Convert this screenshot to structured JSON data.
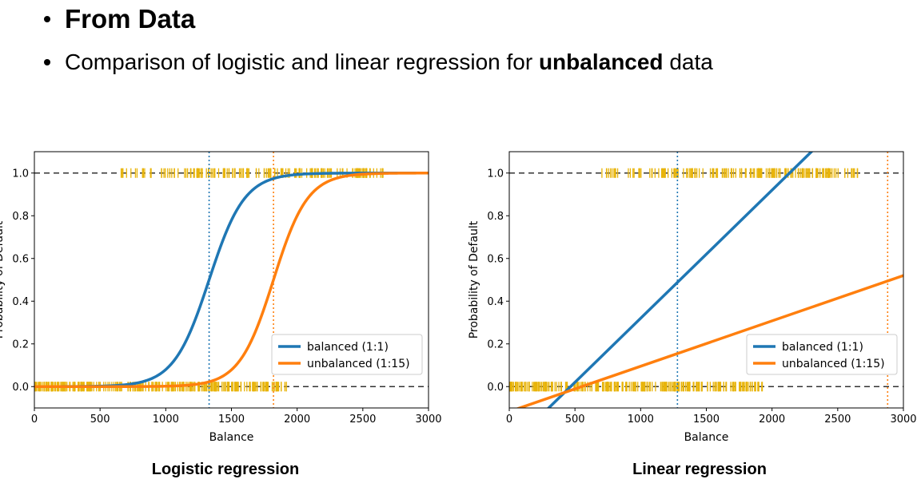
{
  "slide": {
    "bullet1": "From Data",
    "bullet2_pre": "Comparison of logistic and linear regression for ",
    "bullet2_bold": "unbalanced",
    "bullet2_post": " data"
  },
  "colors": {
    "blue": "#1f77b4",
    "orange": "#ff7f0e",
    "rug": "#e8b40a",
    "grid_dash": "#333333"
  },
  "chart_data": [
    {
      "type": "line",
      "caption": "Logistic regression",
      "xlabel": "Balance",
      "ylabel": "Probability of Default",
      "xlim": [
        0,
        3000
      ],
      "ylim": [
        -0.1,
        1.1
      ],
      "xticks": [
        "0",
        "500",
        "1000",
        "1500",
        "2000",
        "2500",
        "3000"
      ],
      "yticks": [
        "0.0",
        "0.2",
        "0.4",
        "0.6",
        "0.8",
        "1.0"
      ],
      "hlines": [
        0.0,
        1.0
      ],
      "legend_position": "lower-right",
      "series": [
        {
          "name": "balanced (1:1)",
          "color": "#1f77b4",
          "model": "logistic",
          "midpoint": 1330,
          "scale": 135,
          "vline": 1330
        },
        {
          "name": "unbalanced (1:15)",
          "color": "#ff7f0e",
          "model": "logistic",
          "midpoint": 1820,
          "scale": 130,
          "vline": 1820
        }
      ],
      "rug_default_range": [
        660,
        2660
      ],
      "rug_nodefault_range": [
        0,
        1930
      ]
    },
    {
      "type": "line",
      "caption": "Linear regression",
      "xlabel": "Balance",
      "ylabel": "Probability of Default",
      "xlim": [
        0,
        3000
      ],
      "ylim": [
        -0.1,
        1.1
      ],
      "xticks": [
        "0",
        "500",
        "1000",
        "1500",
        "2000",
        "2500",
        "3000"
      ],
      "yticks": [
        "0.0",
        "0.2",
        "0.4",
        "0.6",
        "0.8",
        "1.0"
      ],
      "hlines": [
        0.0,
        1.0
      ],
      "legend_position": "lower-right",
      "series": [
        {
          "name": "balanced (1:1)",
          "color": "#1f77b4",
          "model": "linear",
          "points": [
            [
              300,
              -0.1
            ],
            [
              2300,
              1.1
            ]
          ],
          "vline": 1280
        },
        {
          "name": "unbalanced (1:15)",
          "color": "#ff7f0e",
          "model": "linear",
          "points": [
            [
              80,
              -0.1
            ],
            [
              3000,
              0.52
            ]
          ],
          "vline": 2880
        }
      ],
      "rug_default_range": [
        660,
        2660
      ],
      "rug_nodefault_range": [
        0,
        1930
      ]
    }
  ]
}
